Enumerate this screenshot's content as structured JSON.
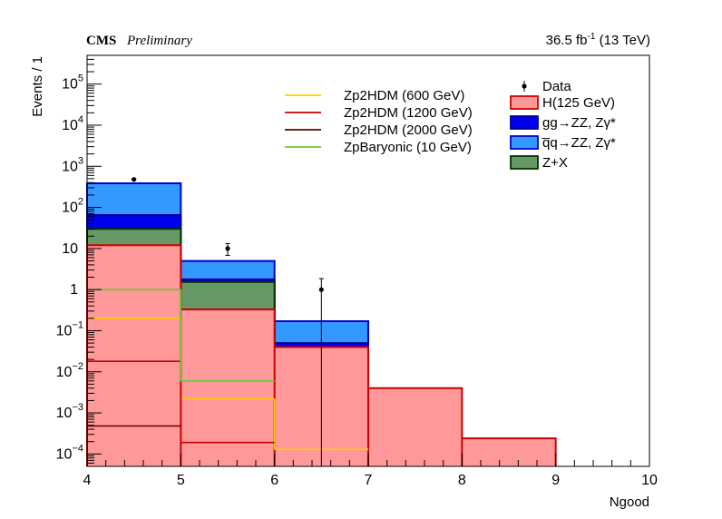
{
  "header": {
    "experiment": "CMS",
    "status": "Preliminary",
    "luminosity": "36.5 fb",
    "lumi_exp": "-1",
    "energy": " (13 TeV)"
  },
  "chart_data": {
    "type": "bar",
    "title": "",
    "xlabel": "Ngood",
    "ylabel": "Events / 1",
    "xlim": [
      4,
      10
    ],
    "ylim": [
      5e-05,
      500000
    ],
    "log_y": true,
    "grid": false,
    "x_ticks": [
      "4",
      "5",
      "6",
      "7",
      "8",
      "9",
      "10"
    ],
    "y_ticks": [
      {
        "v": 0.0001,
        "m": "10",
        "e": "−4"
      },
      {
        "v": 0.001,
        "m": "10",
        "e": "−3"
      },
      {
        "v": 0.01,
        "m": "10",
        "e": "−2"
      },
      {
        "v": 0.1,
        "m": "10",
        "e": "−1"
      },
      {
        "v": 1,
        "m": "1",
        "e": ""
      },
      {
        "v": 10,
        "m": "10",
        "e": ""
      },
      {
        "v": 100,
        "m": "10",
        "e": "2"
      },
      {
        "v": 1000,
        "m": "10",
        "e": "3"
      },
      {
        "v": 10000,
        "m": "10",
        "e": "4"
      },
      {
        "v": 100000,
        "m": "10",
        "e": "5"
      }
    ],
    "bins": [
      4,
      5,
      6,
      7,
      8,
      9,
      10
    ],
    "stack": [
      {
        "name": "H(125 GeV)",
        "fill": "#ff9999",
        "line": "#cc0000",
        "values": [
          12,
          0.33,
          0.04,
          0.004,
          0.00024,
          5e-05
        ]
      },
      {
        "name": "Z+X",
        "fill": "#669966",
        "line": "#003300",
        "values": [
          18,
          1.2,
          0,
          0,
          0,
          0
        ]
      },
      {
        "name": "gg→ZZ, Zγ*",
        "fill": "#0000ee",
        "line": "#000099",
        "values": [
          35,
          0.25,
          0.01,
          0,
          0,
          0
        ]
      },
      {
        "name": "q̅q→ZZ, Zγ*",
        "fill": "#3399ff",
        "line": "#0000cc",
        "values": [
          320,
          3.2,
          0.12,
          0,
          0,
          0
        ]
      }
    ],
    "signals": [
      {
        "name": "Zp2HDM (600 GeV)",
        "color": "#ffcc00",
        "values": [
          0.2,
          0.0022,
          0.00013,
          0,
          0,
          0
        ]
      },
      {
        "name": "Zp2HDM (1200 GeV)",
        "color": "#cc0000",
        "values": [
          0.018,
          0.00019,
          0,
          0,
          0,
          0
        ]
      },
      {
        "name": "Zp2HDM (2000 GeV)",
        "color": "#660000",
        "values": [
          0.00048,
          0,
          0,
          0,
          0,
          0
        ]
      },
      {
        "name": "ZpBaryonic (10 GeV)",
        "color": "#66cc33",
        "values": [
          1.0,
          0.006,
          0,
          0,
          0,
          0
        ]
      }
    ],
    "data": {
      "name": "Data",
      "points": [
        {
          "x": 4.5,
          "y": 480,
          "err": 22
        },
        {
          "x": 5.5,
          "y": 10,
          "err": 3.2
        },
        {
          "x": 6.5,
          "y": 1,
          "err_up": 0.85,
          "err_down_to": 5e-05
        }
      ]
    }
  }
}
